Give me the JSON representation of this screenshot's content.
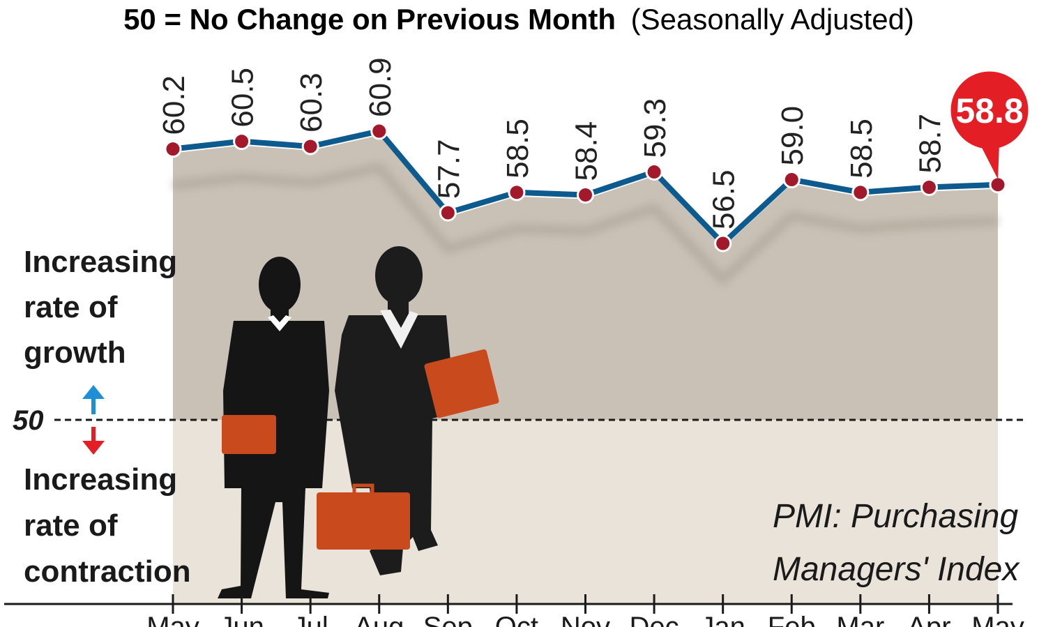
{
  "title": {
    "main": "50 = No Change on Previous Month",
    "sub": "(Seasonally Adjusted)"
  },
  "side_labels": {
    "growth": [
      "Increasing",
      "rate of",
      "growth"
    ],
    "contraction": [
      "Increasing",
      "rate of",
      "contraction"
    ],
    "baseline": "50"
  },
  "note": [
    "PMI: Purchasing",
    "Managers' Index"
  ],
  "highlight": {
    "label": "58.8",
    "color": "#e31e24"
  },
  "colors": {
    "line": "#0d5a8f",
    "marker": "#a3192c",
    "area_upper": "#c9c1b6",
    "area_lower": "#e9e3da",
    "arrow_up": "#1e8fd6",
    "arrow_down": "#e31e24",
    "briefcase": "#c94a1c",
    "silhouette": "#151515"
  },
  "chart_data": {
    "type": "line",
    "title": "50 = No Change on Previous Month (Seasonally Adjusted)",
    "categories": [
      "May",
      "Jun",
      "Jul",
      "Aug",
      "Sep",
      "Oct",
      "Nov",
      "Dec",
      "Jan",
      "Feb",
      "Mar",
      "Apr",
      "May"
    ],
    "values": [
      60.2,
      60.5,
      60.3,
      60.9,
      57.7,
      58.5,
      58.4,
      59.3,
      56.5,
      59.0,
      58.5,
      58.7,
      58.8
    ],
    "value_labels": [
      "60.2",
      "60.5",
      "60.3",
      "60.9",
      "57.7",
      "58.5",
      "58.4",
      "59.3",
      "56.5",
      "59.0",
      "58.5",
      "58.7",
      "58.8"
    ],
    "reference_line": 50,
    "grid": false
  }
}
